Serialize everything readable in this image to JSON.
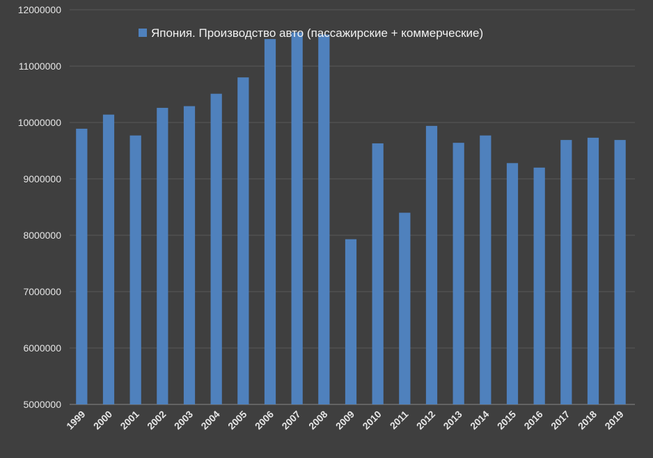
{
  "chart_data": {
    "type": "bar",
    "title": "",
    "xlabel": "",
    "ylabel": "",
    "categories": [
      "1999",
      "2000",
      "2001",
      "2002",
      "2003",
      "2004",
      "2005",
      "2006",
      "2007",
      "2008",
      "2009",
      "2010",
      "2011",
      "2012",
      "2013",
      "2014",
      "2015",
      "2016",
      "2017",
      "2018",
      "2019"
    ],
    "series": [
      {
        "name": "Япония. Производство авто (пассажирские + коммерческие)",
        "color": "#4f81bd",
        "values": [
          9890000,
          10140000,
          9770000,
          10260000,
          10290000,
          10510000,
          10800000,
          11480000,
          11600000,
          11560000,
          7930000,
          9630000,
          8400000,
          9940000,
          9640000,
          9770000,
          9280000,
          9200000,
          9690000,
          9730000,
          9690000
        ]
      }
    ],
    "ylim": [
      5000000,
      12000000
    ],
    "yticks": [
      "5000000",
      "6000000",
      "7000000",
      "8000000",
      "9000000",
      "10000000",
      "11000000",
      "12000000"
    ],
    "grid": true,
    "legend_position": "top-center",
    "colors": {
      "background": "#3f3f3f",
      "grid": "#5a5a5a",
      "text": "#e6e6e6"
    }
  }
}
